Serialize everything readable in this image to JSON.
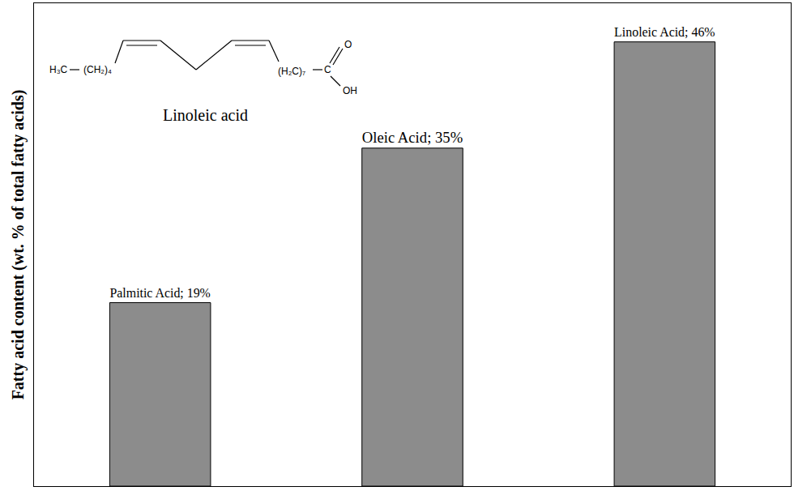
{
  "chart_data": {
    "type": "bar",
    "y_label": "Fatty acid content (wt. % of total fatty acids)",
    "categories": [
      "Palmitic Acid",
      "Oleic Acid",
      "Linoleic Acid"
    ],
    "values": [
      19,
      35,
      46
    ],
    "value_labels": [
      "Palmitic Acid; 19%",
      "Oleic Acid; 35%",
      "Linoleic Acid; 46%"
    ],
    "data_labels": true,
    "tick_labels": false,
    "color": "#8c8c8c",
    "ylim": [
      0,
      50
    ],
    "yticks": [],
    "grid": false,
    "annotations": [
      "Linoleic acid",
      "H₃C",
      "(CH₂)₄",
      "(H₂C)₇",
      "C",
      "O",
      "OH"
    ]
  }
}
